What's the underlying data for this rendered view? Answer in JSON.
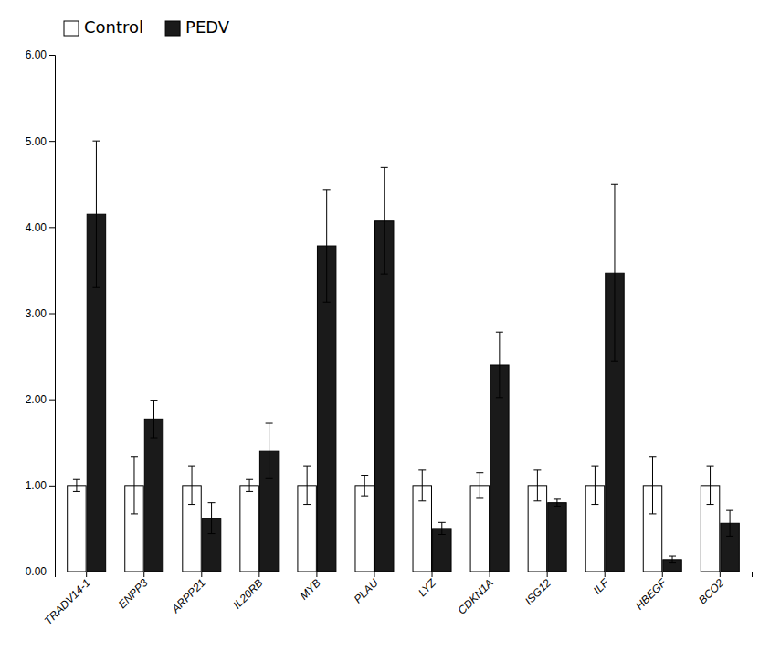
{
  "chart_data": {
    "type": "bar",
    "categories": [
      "TRADV14-1",
      "ENPP3",
      "ARPP21",
      "IL20RB",
      "MYB",
      "PLAU",
      "LYZ",
      "CDKN1A",
      "ISG12",
      "ILF",
      "HBEGF",
      "BCO2"
    ],
    "series": [
      {
        "name": "Control",
        "color": "#ffffff",
        "values": [
          1.0,
          1.0,
          1.0,
          1.0,
          1.0,
          1.0,
          1.0,
          1.0,
          1.0,
          1.0,
          1.0,
          1.0
        ],
        "errors": [
          0.07,
          0.33,
          0.22,
          0.07,
          0.22,
          0.12,
          0.18,
          0.15,
          0.18,
          0.22,
          0.33,
          0.22
        ]
      },
      {
        "name": "PEDV",
        "color": "#1a1a1a",
        "values": [
          4.15,
          1.77,
          0.62,
          1.4,
          3.78,
          4.07,
          0.5,
          2.4,
          0.8,
          3.47,
          0.14,
          0.56
        ],
        "errors": [
          0.85,
          0.22,
          0.18,
          0.32,
          0.65,
          0.62,
          0.07,
          0.38,
          0.04,
          1.03,
          0.04,
          0.15
        ]
      }
    ],
    "ylim": [
      0.0,
      6.0
    ],
    "yticks": [
      {
        "value": 0.0,
        "label": "0.00"
      },
      {
        "value": 1.0,
        "label": "1.00"
      },
      {
        "value": 2.0,
        "label": "2.00"
      },
      {
        "value": 3.0,
        "label": "3.00"
      },
      {
        "value": 4.0,
        "label": "4.00"
      },
      {
        "value": 5.0,
        "label": "5.00"
      },
      {
        "value": 6.0,
        "label": "6.00"
      }
    ],
    "legend": "top-left",
    "grid": false
  }
}
